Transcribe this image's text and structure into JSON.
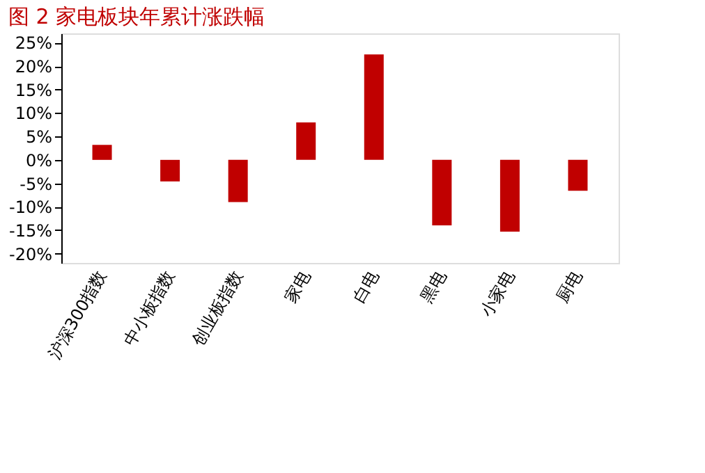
{
  "chart_data": {
    "type": "bar",
    "title": "图 2   家电板块年累计涨跌幅",
    "categories": [
      "沪深300指数",
      "中小板指数",
      "创业板指数",
      "家电",
      "白电",
      "黑电",
      "小家电",
      "厨电"
    ],
    "values": [
      3.2,
      -4.6,
      -9.0,
      8.0,
      22.5,
      -14.0,
      -15.3,
      -6.6
    ],
    "color": "#c00000",
    "ylim": [
      -22,
      27
    ],
    "yticks": [
      {
        "value": -20,
        "label": "-20%"
      },
      {
        "value": -15,
        "label": "-15%"
      },
      {
        "value": -10,
        "label": "-10%"
      },
      {
        "value": -5,
        "label": "-5%"
      },
      {
        "value": 0,
        "label": "0%"
      },
      {
        "value": 5,
        "label": "5%"
      },
      {
        "value": 10,
        "label": "10%"
      },
      {
        "value": 15,
        "label": "15%"
      },
      {
        "value": 20,
        "label": "20%"
      },
      {
        "value": 25,
        "label": "25%"
      }
    ],
    "grid": false
  }
}
